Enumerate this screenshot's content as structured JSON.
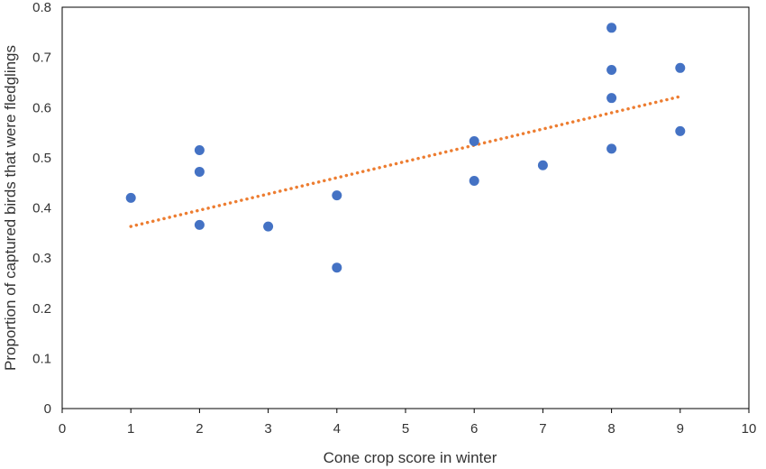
{
  "chart_data": {
    "type": "scatter",
    "xlabel": "Cone crop score in winter",
    "ylabel": "Proportion of captured birds that were fledglings",
    "xlim": [
      0,
      10
    ],
    "ylim": [
      0,
      0.8
    ],
    "xticks": [
      "0",
      "1",
      "2",
      "3",
      "4",
      "5",
      "6",
      "7",
      "8",
      "9",
      "10"
    ],
    "yticks": [
      "0",
      "0.1",
      "0.2",
      "0.3",
      "0.4",
      "0.5",
      "0.6",
      "0.7",
      "0.8"
    ],
    "grid": false,
    "legend": "none",
    "points": [
      {
        "x": 1,
        "y": 0.42
      },
      {
        "x": 2,
        "y": 0.515
      },
      {
        "x": 2,
        "y": 0.472
      },
      {
        "x": 2,
        "y": 0.366
      },
      {
        "x": 3,
        "y": 0.363
      },
      {
        "x": 4,
        "y": 0.425
      },
      {
        "x": 4,
        "y": 0.281
      },
      {
        "x": 6,
        "y": 0.533
      },
      {
        "x": 6,
        "y": 0.454
      },
      {
        "x": 7,
        "y": 0.485
      },
      {
        "x": 8,
        "y": 0.759
      },
      {
        "x": 8,
        "y": 0.675
      },
      {
        "x": 8,
        "y": 0.619
      },
      {
        "x": 8,
        "y": 0.518
      },
      {
        "x": 9,
        "y": 0.679
      },
      {
        "x": 9,
        "y": 0.553
      }
    ],
    "trendline": {
      "type": "linear",
      "style": "dotted",
      "x_start": 1,
      "y_start": 0.363,
      "x_end": 9,
      "y_end": 0.622
    },
    "colors": {
      "points": "#4472C4",
      "trendline": "#ED7D31",
      "axes": "#000000",
      "text": "#333333"
    }
  }
}
